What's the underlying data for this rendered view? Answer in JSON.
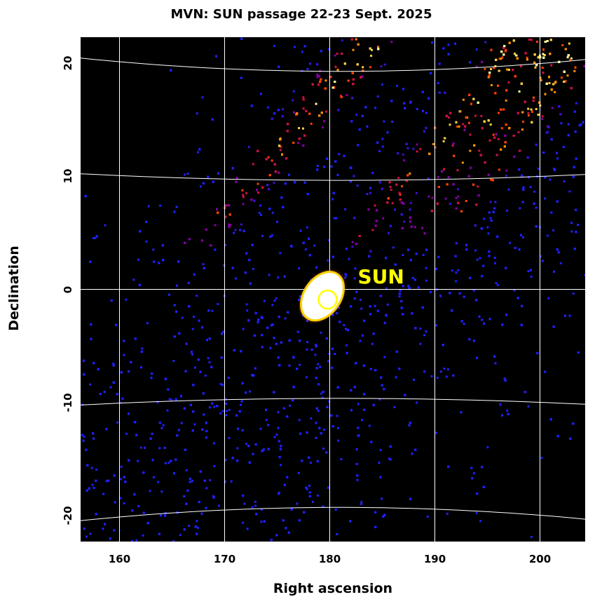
{
  "chart_data": {
    "type": "heatmap",
    "title": "MVN: SUN passage 22-23 Sept. 2025",
    "xlabel": "Right ascension",
    "ylabel": "Declination",
    "xlim": [
      156.3,
      204.3
    ],
    "ylim": [
      -22.3,
      22.3
    ],
    "x_ticks": [
      "160",
      "170",
      "180",
      "190",
      "200"
    ],
    "y_ticks": [
      "20",
      "10",
      "0",
      "-10",
      "-20"
    ],
    "grid": true,
    "colormap": "black-blue-red-yellow-white",
    "background_color": "#000000",
    "source": {
      "label": "SUN",
      "ra": 179.8,
      "dec": -0.9,
      "marker_color": "#ffff00"
    },
    "bright_region": {
      "center_ra": 179.3,
      "center_dec": -0.6,
      "description_color": "#ffffff"
    },
    "streaks": [
      {
        "name": "upper-left",
        "start": [
          167,
          4
        ],
        "end": [
          184,
          22
        ]
      },
      {
        "name": "upper-middle",
        "start": [
          183,
          5
        ],
        "end": [
          198,
          22
        ]
      },
      {
        "name": "upper-right-1",
        "start": [
          188,
          6
        ],
        "end": [
          201,
          22
        ]
      },
      {
        "name": "upper-right-2",
        "start": [
          191,
          5
        ],
        "end": [
          204,
          22
        ]
      }
    ]
  }
}
